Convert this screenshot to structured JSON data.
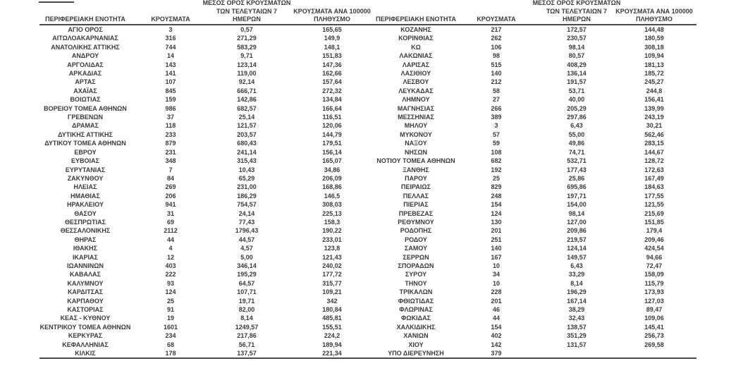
{
  "colors": {
    "text": "#3a3a3a",
    "rule": "#4a4a4a",
    "background": "#ffffff"
  },
  "headers": {
    "region": "ΠΕΡΙΦΕΡΕΙΑΚΗ ΕΝΟΤΗΤΑ",
    "cases": "ΚΡΟΥΣΜΑΤΑ",
    "avg7_l1": "ΜΕΣΟΣ ΟΡΟΣ ΚΡΟΥΣΜΑΤΩΝ",
    "avg7_l2": "ΤΩΝ ΤΕΛΕΥΤΑΙΩΝ 7",
    "avg7_l3": "ΗΜΕΡΩΝ",
    "per100k_l1": "ΚΡΟΥΣΜΑΤΑ ΑΝΑ 100000",
    "per100k_l2": "ΠΛΗΘΥΣΜΟ"
  },
  "left_rows": [
    [
      "ΑΓΙΟ ΟΡΟΣ",
      "3",
      "0,57",
      "165,65"
    ],
    [
      "ΑΙΤΩΛΟΑΚΑΡΝΑΝΙΑΣ",
      "316",
      "271,29",
      "149,9"
    ],
    [
      "ΑΝΑΤΟΛΙΚΗΣ ΑΤΤΙΚΗΣ",
      "744",
      "583,29",
      "148,1"
    ],
    [
      "ΑΝΔΡΟΥ",
      "14",
      "9,71",
      "151,83"
    ],
    [
      "ΑΡΓΟΛΙΔΑΣ",
      "143",
      "123,14",
      "147,36"
    ],
    [
      "ΑΡΚΑΔΙΑΣ",
      "141",
      "119,00",
      "162,66"
    ],
    [
      "ΑΡΤΑΣ",
      "107",
      "92,14",
      "157,64"
    ],
    [
      "ΑΧΑΪΑΣ",
      "845",
      "666,71",
      "272,32"
    ],
    [
      "ΒΟΙΩΤΙΑΣ",
      "159",
      "142,86",
      "134,84"
    ],
    [
      "ΒΟΡΕΙΟΥ ΤΟΜΕΑ ΑΘΗΝΩΝ",
      "986",
      "682,57",
      "166,64"
    ],
    [
      "ΓΡΕΒΕΝΩΝ",
      "37",
      "25,14",
      "116,51"
    ],
    [
      "ΔΡΑΜΑΣ",
      "118",
      "121,57",
      "120,06"
    ],
    [
      "ΔΥΤΙΚΗΣ ΑΤΤΙΚΗΣ",
      "233",
      "203,57",
      "144,79"
    ],
    [
      "ΔΥΤΙΚΟΥ ΤΟΜΕΑ ΑΘΗΝΩΝ",
      "879",
      "680,43",
      "179,51"
    ],
    [
      "ΕΒΡΟΥ",
      "231",
      "241,14",
      "156,14"
    ],
    [
      "ΕΥΒΟΙΑΣ",
      "348",
      "315,43",
      "165,07"
    ],
    [
      "ΕΥΡΥΤΑΝΙΑΣ",
      "7",
      "10,43",
      "34,86"
    ],
    [
      "ΖΑΚΥΝΘΟΥ",
      "84",
      "65,29",
      "206,09"
    ],
    [
      "ΗΛΕΙΑΣ",
      "269",
      "231,00",
      "168,86"
    ],
    [
      "ΗΜΑΘΙΑΣ",
      "206",
      "186,29",
      "146,5"
    ],
    [
      "ΗΡΑΚΛΕΙΟΥ",
      "941",
      "754,57",
      "308,03"
    ],
    [
      "ΘΑΣΟΥ",
      "31",
      "24,14",
      "225,13"
    ],
    [
      "ΘΕΣΠΡΩΤΙΑΣ",
      "69",
      "77,43",
      "158,3"
    ],
    [
      "ΘΕΣΣΑΛΟΝΙΚΗΣ",
      "2112",
      "1796,43",
      "190,22"
    ],
    [
      "ΘΗΡΑΣ",
      "44",
      "44,57",
      "233,01"
    ],
    [
      "ΙΘΑΚΗΣ",
      "4",
      "4,57",
      "123,8"
    ],
    [
      "ΙΚΑΡΙΑΣ",
      "12",
      "5,00",
      "121,43"
    ],
    [
      "ΙΩΑΝΝΙΝΩΝ",
      "403",
      "346,14",
      "240,02"
    ],
    [
      "ΚΑΒΑΛΑΣ",
      "222",
      "195,29",
      "177,72"
    ],
    [
      "ΚΑΛΥΜΝΟΥ",
      "93",
      "64,57",
      "315,77"
    ],
    [
      "ΚΑΡΔΙΤΣΑΣ",
      "124",
      "107,71",
      "109,21"
    ],
    [
      "ΚΑΡΠΑΘΟΥ",
      "25",
      "19,71",
      "342"
    ],
    [
      "ΚΑΣΤΟΡΙΑΣ",
      "91",
      "82,00",
      "180,84"
    ],
    [
      "ΚΕΑΣ - ΚΥΘΝΟΥ",
      "19",
      "8,14",
      "485,81"
    ],
    [
      "ΚΕΝΤΡΙΚΟΥ ΤΟΜΕΑ ΑΘΗΝΩΝ",
      "1601",
      "1249,57",
      "155,51"
    ],
    [
      "ΚΕΡΚΥΡΑΣ",
      "234",
      "217,86",
      "224,2"
    ],
    [
      "ΚΕΦΑΛΛΗΝΙΑΣ",
      "68",
      "56,71",
      "189,94"
    ],
    [
      "ΚΙΛΚΙΣ",
      "178",
      "137,57",
      "221,34"
    ]
  ],
  "right_rows": [
    [
      "ΚΟΖΑΝΗΣ",
      "217",
      "172,57",
      "144,48"
    ],
    [
      "ΚΟΡΙΝΘΙΑΣ",
      "262",
      "230,57",
      "180,59"
    ],
    [
      "ΚΩ",
      "106",
      "98,14",
      "308,18"
    ],
    [
      "ΛΑΚΩΝΙΑΣ",
      "98",
      "80,57",
      "109,94"
    ],
    [
      "ΛΑΡΙΣΑΣ",
      "515",
      "408,29",
      "181,13"
    ],
    [
      "ΛΑΣΙΘΙΟΥ",
      "140",
      "136,14",
      "185,72"
    ],
    [
      "ΛΕΣΒΟΥ",
      "212",
      "191,57",
      "245,27"
    ],
    [
      "ΛΕΥΚΑΔΑΣ",
      "58",
      "53,71",
      "244,8"
    ],
    [
      "ΛΗΜΝΟΥ",
      "27",
      "40,00",
      "156,41"
    ],
    [
      "ΜΑΓΝΗΣΙΑΣ",
      "266",
      "205,29",
      "139,99"
    ],
    [
      "ΜΕΣΣΗΝΙΑΣ",
      "389",
      "297,86",
      "243,19"
    ],
    [
      "ΜΗΛΟΥ",
      "3",
      "6,43",
      "30,21"
    ],
    [
      "ΜΥΚΟΝΟΥ",
      "57",
      "55,00",
      "562,46"
    ],
    [
      "ΝΑΞΟΥ",
      "59",
      "49,86",
      "283,15"
    ],
    [
      "ΝΗΣΩΝ",
      "108",
      "74,71",
      "144,67"
    ],
    [
      "ΝΟΤΙΟΥ ΤΟΜΕΑ ΑΘΗΝΩΝ",
      "682",
      "532,71",
      "128,72"
    ],
    [
      "ΞΑΝΘΗΣ",
      "192",
      "177,43",
      "172,63"
    ],
    [
      "ΠΑΡΟΥ",
      "25",
      "25,86",
      "167,49"
    ],
    [
      "ΠΕΙΡΑΙΩΣ",
      "829",
      "695,86",
      "184,63"
    ],
    [
      "ΠΕΛΛΑΣ",
      "248",
      "197,71",
      "177,55"
    ],
    [
      "ΠΙΕΡΙΑΣ",
      "154",
      "154,00",
      "121,55"
    ],
    [
      "ΠΡΕΒΕΖΑΣ",
      "124",
      "98,14",
      "215,69"
    ],
    [
      "ΡΕΘΥΜΝΟΥ",
      "130",
      "127,00",
      "151,85"
    ],
    [
      "ΡΟΔΟΠΗΣ",
      "201",
      "209,86",
      "179,4"
    ],
    [
      "ΡΟΔΟΥ",
      "251",
      "219,57",
      "209,46"
    ],
    [
      "ΣΑΜΟΥ",
      "140",
      "124,14",
      "424,54"
    ],
    [
      "ΣΕΡΡΩΝ",
      "167",
      "149,57",
      "94,66"
    ],
    [
      "ΣΠΟΡΑΔΩΝ",
      "10",
      "6,43",
      "72,47"
    ],
    [
      "ΣΥΡΟΥ",
      "34",
      "33,29",
      "158,09"
    ],
    [
      "ΤΗΝΟΥ",
      "10",
      "8,14",
      "115,79"
    ],
    [
      "ΤΡΙΚΑΛΩΝ",
      "228",
      "196,29",
      "173,93"
    ],
    [
      "ΦΘΙΩΤΙΔΑΣ",
      "201",
      "167,14",
      "127,03"
    ],
    [
      "ΦΛΩΡΙΝΑΣ",
      "46",
      "38,29",
      "89,47"
    ],
    [
      "ΦΩΚΙΔΑΣ",
      "44",
      "32,43",
      "109,06"
    ],
    [
      "ΧΑΛΚΙΔΙΚΗΣ",
      "154",
      "138,57",
      "145,41"
    ],
    [
      "ΧΑΝΙΩΝ",
      "402",
      "351,29",
      "256,73"
    ],
    [
      "ΧΙΟΥ",
      "142",
      "131,57",
      "269,58"
    ],
    [
      "ΥΠΟ ΔΙΕΡΕΥΝΗΣΗ",
      "379",
      "",
      ""
    ]
  ]
}
